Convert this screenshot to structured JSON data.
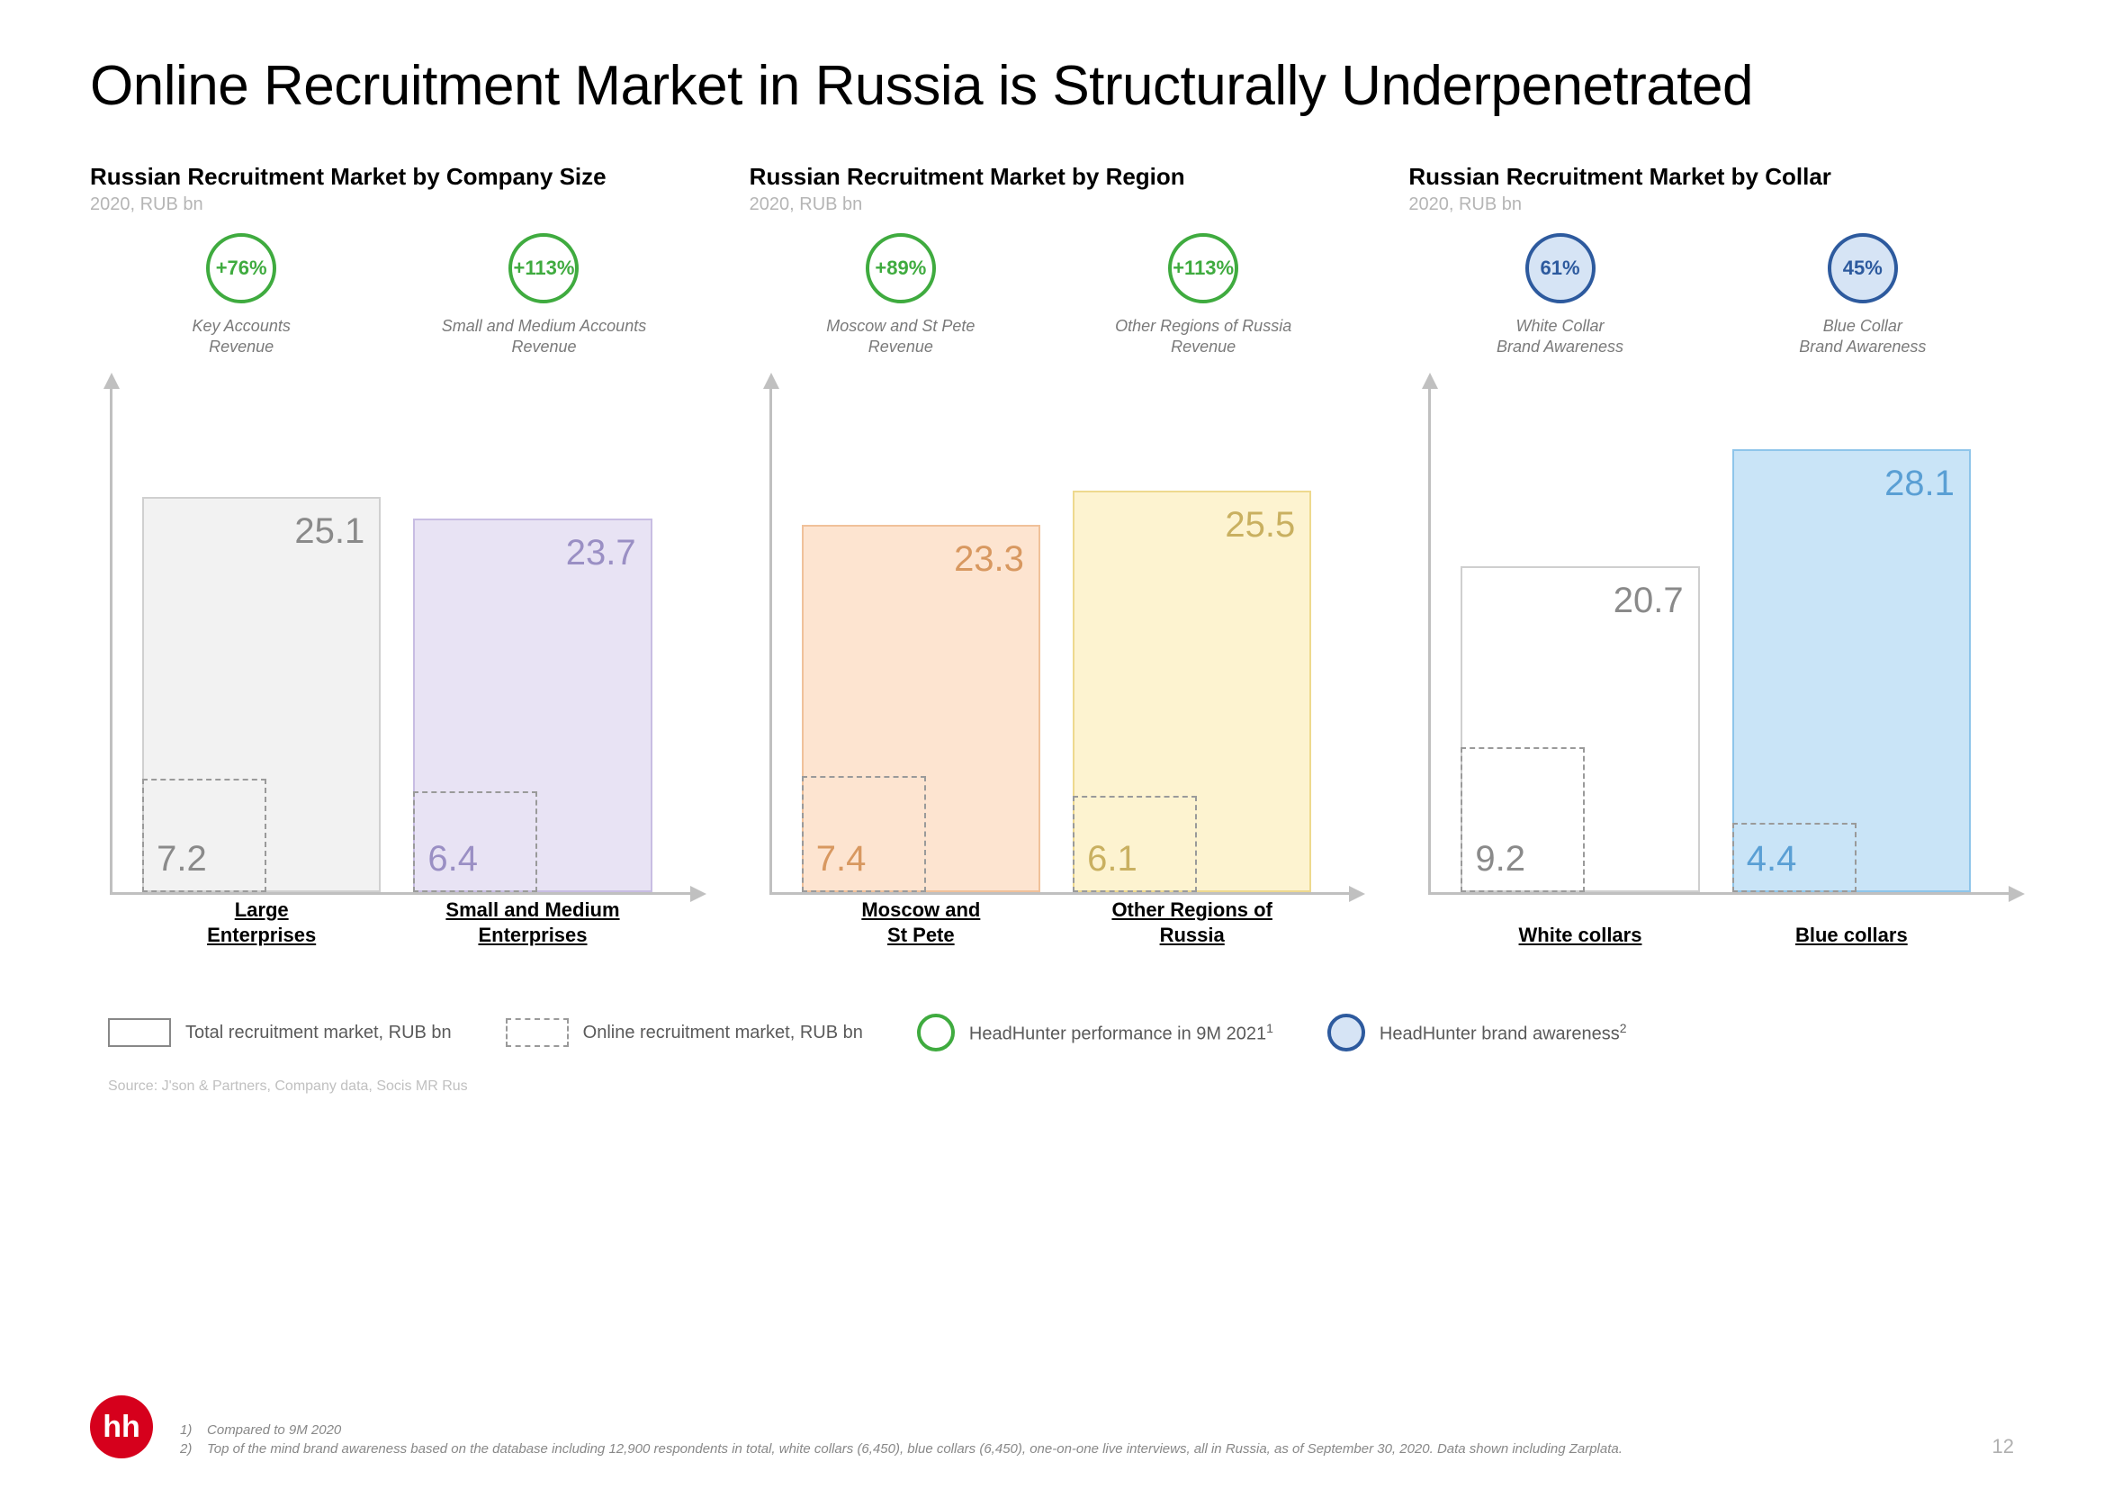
{
  "title": "Online Recruitment Market in Russia is Structurally Underpenetrated",
  "charts": [
    {
      "title": "Russian Recruitment Market by Company Size",
      "subtitle": "2020, RUB bn",
      "bubble_style": {
        "border": "#3fab3f",
        "fill": "#ffffff",
        "text": "#3fab3f"
      },
      "bubbles": [
        {
          "value": "+76%",
          "label": "Key Accounts\nRevenue"
        },
        {
          "value": "+113%",
          "label": "Small and Medium Accounts\nRevenue"
        }
      ],
      "ymax": 30,
      "bars": [
        {
          "label": "Large\nEnterprises",
          "total": 25.1,
          "online": 7.2,
          "fill": "#f2f2f2",
          "border": "#d0d0d0",
          "text": "#8a8a8a"
        },
        {
          "label": "Small and Medium\nEnterprises",
          "total": 23.7,
          "online": 6.4,
          "fill": "#e8e3f4",
          "border": "#c8bde3",
          "text": "#9a8fc4"
        }
      ]
    },
    {
      "title": "Russian Recruitment Market by Region",
      "subtitle": "2020, RUB bn",
      "bubble_style": {
        "border": "#3fab3f",
        "fill": "#ffffff",
        "text": "#3fab3f"
      },
      "bubbles": [
        {
          "value": "+89%",
          "label": "Moscow and St Pete\nRevenue"
        },
        {
          "value": "+113%",
          "label": "Other Regions of Russia\nRevenue"
        }
      ],
      "ymax": 30,
      "bars": [
        {
          "label": "Moscow and\nSt Pete",
          "total": 23.3,
          "online": 7.4,
          "fill": "#fde4d0",
          "border": "#f0c19a",
          "text": "#d89860"
        },
        {
          "label": "Other Regions of\nRussia",
          "total": 25.5,
          "online": 6.1,
          "fill": "#fdf3d0",
          "border": "#eed98e",
          "text": "#c9b060"
        }
      ]
    },
    {
      "title": "Russian Recruitment Market by Collar",
      "subtitle": "2020, RUB bn",
      "bubble_style": {
        "border": "#2d5a9e",
        "fill": "#d6e4f5",
        "text": "#2d5a9e"
      },
      "bubbles": [
        {
          "value": "61%",
          "label": "White Collar\nBrand Awareness"
        },
        {
          "value": "45%",
          "label": "Blue Collar\nBrand Awareness"
        }
      ],
      "ymax": 30,
      "bars": [
        {
          "label": "White collars",
          "total": 20.7,
          "online": 9.2,
          "fill": "#ffffff",
          "border": "#cfcfcf",
          "text": "#8a8a8a"
        },
        {
          "label": "Blue collars",
          "total": 28.1,
          "online": 4.4,
          "fill": "#c9e4f7",
          "border": "#8ec5ea",
          "text": "#5a9fd4"
        }
      ]
    }
  ],
  "legend": {
    "total": "Total recruitment market, RUB bn",
    "online": "Online recruitment market, RUB bn",
    "perf": "HeadHunter performance in 9M 2021",
    "perf_sup": "1",
    "aware": "HeadHunter brand awareness",
    "aware_sup": "2",
    "green_border": "#3fab3f",
    "blue_border": "#2d5a9e",
    "blue_fill": "#d6e4f5"
  },
  "source": "Source: J'son & Partners, Company data, Socis MR Rus",
  "footnotes": {
    "n1": "1)",
    "t1": "Compared to 9M 2020",
    "n2": "2)",
    "t2": "Top of the mind brand awareness based on the database including 12,900 respondents in total, white collars (6,450), blue collars (6,450), one-on-one live interviews, all in Russia, as of September 30, 2020. Data shown including Zarplata."
  },
  "logo": "hh",
  "page": "12"
}
